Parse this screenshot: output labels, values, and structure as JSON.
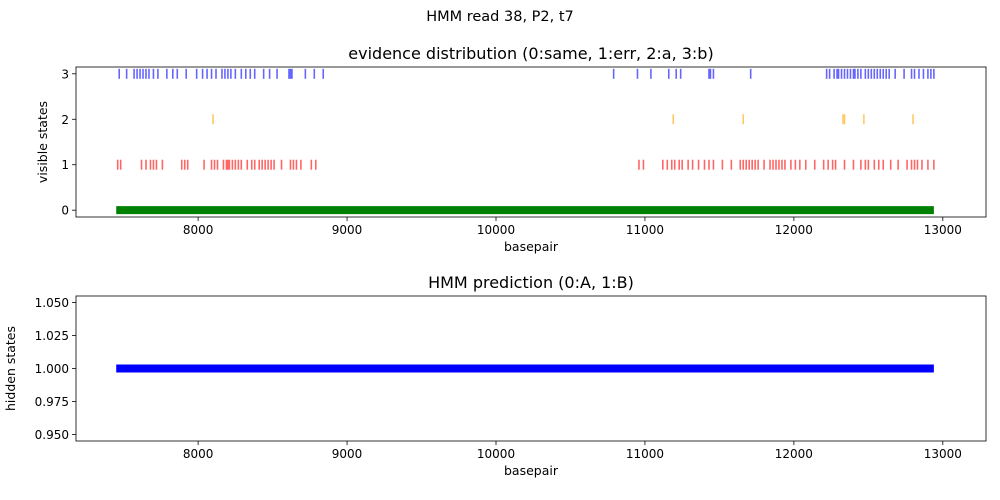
{
  "suptitle": "HMM read 38, P2, t7",
  "chart_data": [
    {
      "type": "scatter",
      "title": "evidence distribution (0:same, 1:err, 2:a, 3:b)",
      "xlabel": "basepair",
      "ylabel": "visible states",
      "xlim": [
        7180,
        13290
      ],
      "ylim": [
        -0.15,
        3.15
      ],
      "xticks": [
        8000,
        9000,
        10000,
        11000,
        12000,
        13000
      ],
      "yticks": [
        0,
        1,
        2,
        3
      ],
      "grid": false,
      "colors": {
        "same": "#008000",
        "err": "#ff0000",
        "a": "#ffa500",
        "b": "#0000ff"
      },
      "same_span": [
        7450,
        12940
      ],
      "series": [
        {
          "key": "err",
          "y": 1,
          "x": [
            7460,
            7480,
            7620,
            7650,
            7680,
            7700,
            7720,
            7760,
            7890,
            7910,
            7930,
            8040,
            8090,
            8110,
            8130,
            8170,
            8190,
            8200,
            8210,
            8230,
            8250,
            8270,
            8290,
            8330,
            8360,
            8380,
            8410,
            8430,
            8450,
            8470,
            8490,
            8510,
            8560,
            8620,
            8640,
            8660,
            8690,
            8760,
            8790,
            10960,
            10990,
            11120,
            11150,
            11180,
            11200,
            11230,
            11250,
            11290,
            11320,
            11360,
            11400,
            11430,
            11460,
            11520,
            11580,
            11640,
            11660,
            11680,
            11700,
            11720,
            11740,
            11760,
            11800,
            11840,
            11860,
            11880,
            11900,
            11920,
            11940,
            11980,
            12010,
            12040,
            12080,
            12140,
            12200,
            12230,
            12260,
            12280,
            12340,
            12400,
            12450,
            12480,
            12500,
            12540,
            12570,
            12600,
            12650,
            12700,
            12760,
            12790,
            12810,
            12830,
            12860,
            12900,
            12940
          ]
        },
        {
          "key": "a",
          "y": 2,
          "x": [
            8100,
            11190,
            11660,
            12330,
            12340,
            12470,
            12800
          ]
        },
        {
          "key": "b",
          "y": 3,
          "x": [
            7470,
            7520,
            7570,
            7590,
            7610,
            7630,
            7650,
            7670,
            7700,
            7730,
            7790,
            7830,
            7860,
            7920,
            7990,
            8030,
            8060,
            8090,
            8120,
            8160,
            8180,
            8200,
            8220,
            8250,
            8290,
            8320,
            8350,
            8380,
            8440,
            8480,
            8530,
            8610,
            8620,
            8630,
            8720,
            8780,
            8840,
            10790,
            10950,
            11040,
            11160,
            11210,
            11240,
            11430,
            11440,
            11460,
            11710,
            12220,
            12240,
            12270,
            12290,
            12300,
            12320,
            12340,
            12360,
            12380,
            12400,
            12410,
            12430,
            12450,
            12480,
            12500,
            12520,
            12540,
            12560,
            12580,
            12600,
            12620,
            12640,
            12680,
            12740,
            12790,
            12810,
            12840,
            12870,
            12900,
            12920,
            12940
          ]
        }
      ]
    },
    {
      "type": "line",
      "title": "HMM prediction (0:A, 1:B)",
      "xlabel": "basepair",
      "ylabel": "hidden states",
      "xlim": [
        7180,
        13290
      ],
      "ylim": [
        0.945,
        1.055
      ],
      "xticks": [
        8000,
        9000,
        10000,
        11000,
        12000,
        13000
      ],
      "yticks": [
        0.95,
        0.975,
        1.0,
        1.025,
        1.05
      ],
      "ytick_labels": [
        "0.950",
        "0.975",
        "1.000",
        "1.025",
        "1.050"
      ],
      "grid": false,
      "color": "#0000ff",
      "segments": [
        {
          "x_start": 7450,
          "x_end": 12940,
          "state": 1
        }
      ]
    }
  ]
}
